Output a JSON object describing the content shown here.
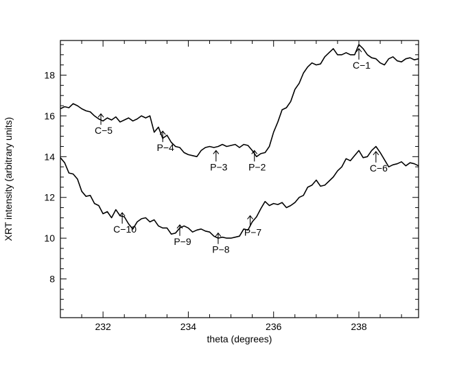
{
  "chart_data": {
    "type": "line",
    "title": "",
    "xlabel": "theta (degrees)",
    "ylabel": "XRT intensity (arbitrary units)",
    "xlim": [
      231.0,
      239.4
    ],
    "ylim": [
      6.1,
      19.7
    ],
    "x_ticks": [
      232,
      234,
      236,
      238
    ],
    "y_ticks": [
      8,
      10,
      12,
      14,
      16,
      18
    ],
    "grid": false,
    "series": [
      {
        "x": [
          231.0,
          231.1,
          231.2,
          231.3,
          231.4,
          231.5,
          231.6,
          231.7,
          231.8,
          231.9,
          232.0,
          232.1,
          232.2,
          232.3,
          232.4,
          232.5,
          232.6,
          232.7,
          232.8,
          232.9,
          233.0,
          233.1,
          233.2,
          233.3,
          233.4,
          233.5,
          233.6,
          233.7,
          233.8,
          233.9,
          234.0,
          234.1,
          234.2,
          234.3,
          234.4,
          234.5,
          234.6,
          234.7,
          234.8,
          234.9,
          235.0,
          235.1,
          235.2,
          235.3,
          235.4,
          235.5,
          235.6,
          235.7,
          235.8,
          235.9,
          236.0,
          236.1,
          236.2,
          236.3,
          236.4,
          236.5,
          236.6,
          236.7,
          236.8,
          236.9,
          237.0,
          237.1,
          237.2,
          237.3,
          237.4,
          237.5,
          237.6,
          237.7,
          237.8,
          237.9,
          238.0,
          238.1,
          238.2,
          238.3,
          238.4,
          238.5,
          238.6,
          238.7,
          238.8,
          238.9,
          239.0,
          239.1,
          239.2,
          239.3,
          239.4
        ],
        "values": [
          16.35,
          16.45,
          16.4,
          16.6,
          16.5,
          16.35,
          16.25,
          16.2,
          16.0,
          15.85,
          15.75,
          15.9,
          15.8,
          15.95,
          15.7,
          15.8,
          15.9,
          15.75,
          15.85,
          16.0,
          15.9,
          16.0,
          15.2,
          15.45,
          14.9,
          15.05,
          14.7,
          14.5,
          14.45,
          14.2,
          14.1,
          14.05,
          14.0,
          14.3,
          14.45,
          14.5,
          14.45,
          14.5,
          14.6,
          14.5,
          14.55,
          14.6,
          14.45,
          14.6,
          14.55,
          14.3,
          14.0,
          14.15,
          14.2,
          14.5,
          15.2,
          15.7,
          16.3,
          16.4,
          16.7,
          17.3,
          17.6,
          18.1,
          18.4,
          18.6,
          18.5,
          18.55,
          18.9,
          19.1,
          19.3,
          19.0,
          19.0,
          19.1,
          19.0,
          19.0,
          19.5,
          19.3,
          19.0,
          18.85,
          18.8,
          18.6,
          18.5,
          18.8,
          18.9,
          18.7,
          18.65,
          18.8,
          18.85,
          18.75,
          18.8
        ]
      },
      {
        "x": [
          231.0,
          231.1,
          231.2,
          231.3,
          231.4,
          231.5,
          231.6,
          231.7,
          231.8,
          231.9,
          232.0,
          232.1,
          232.2,
          232.3,
          232.4,
          232.5,
          232.6,
          232.7,
          232.8,
          232.9,
          233.0,
          233.1,
          233.2,
          233.3,
          233.4,
          233.5,
          233.6,
          233.7,
          233.8,
          233.9,
          234.0,
          234.1,
          234.2,
          234.3,
          234.4,
          234.5,
          234.6,
          234.7,
          234.8,
          234.9,
          235.0,
          235.1,
          235.2,
          235.3,
          235.4,
          235.5,
          235.6,
          235.7,
          235.8,
          235.9,
          236.0,
          236.1,
          236.2,
          236.3,
          236.4,
          236.5,
          236.6,
          236.7,
          236.8,
          236.9,
          237.0,
          237.1,
          237.2,
          237.3,
          237.4,
          237.5,
          237.6,
          237.7,
          237.8,
          237.9,
          238.0,
          238.1,
          238.2,
          238.3,
          238.4,
          238.5,
          238.6,
          238.7,
          238.8,
          238.9,
          239.0,
          239.1,
          239.2,
          239.3,
          239.4
        ],
        "values": [
          13.95,
          13.7,
          13.2,
          13.15,
          12.9,
          12.3,
          12.05,
          12.1,
          11.7,
          11.6,
          11.2,
          11.3,
          11.0,
          11.4,
          11.1,
          11.05,
          10.7,
          10.45,
          10.8,
          10.95,
          11.0,
          10.8,
          10.9,
          10.6,
          10.5,
          10.5,
          10.2,
          10.25,
          10.5,
          10.6,
          10.5,
          10.3,
          10.4,
          10.45,
          10.35,
          10.3,
          10.1,
          10.0,
          10.05,
          10.0,
          10.0,
          10.05,
          10.1,
          10.45,
          10.4,
          10.8,
          11.05,
          11.45,
          11.8,
          11.6,
          11.7,
          11.65,
          11.75,
          11.5,
          11.6,
          11.75,
          12.0,
          12.1,
          12.5,
          12.6,
          12.85,
          12.55,
          12.6,
          12.8,
          13.0,
          13.3,
          13.5,
          13.9,
          13.8,
          14.05,
          14.3,
          13.95,
          14.0,
          14.3,
          14.5,
          14.2,
          13.85,
          13.5,
          13.6,
          13.65,
          13.75,
          13.55,
          13.7,
          13.65,
          13.55
        ]
      }
    ],
    "annotations": [
      {
        "label": "C−1",
        "x": 238.0,
        "y": 19.1
      },
      {
        "label": "C−5",
        "x": 231.95,
        "y": 15.9
      },
      {
        "label": "P−4",
        "x": 233.4,
        "y": 15.05
      },
      {
        "label": "P−3",
        "x": 234.65,
        "y": 14.1
      },
      {
        "label": "P−2",
        "x": 235.55,
        "y": 14.1
      },
      {
        "label": "C−6",
        "x": 238.4,
        "y": 14.05
      },
      {
        "label": "C−10",
        "x": 232.45,
        "y": 11.05
      },
      {
        "label": "P−9",
        "x": 233.8,
        "y": 10.45
      },
      {
        "label": "P−8",
        "x": 234.7,
        "y": 10.05
      },
      {
        "label": "P−7",
        "x": 235.45,
        "y": 10.9
      }
    ]
  }
}
